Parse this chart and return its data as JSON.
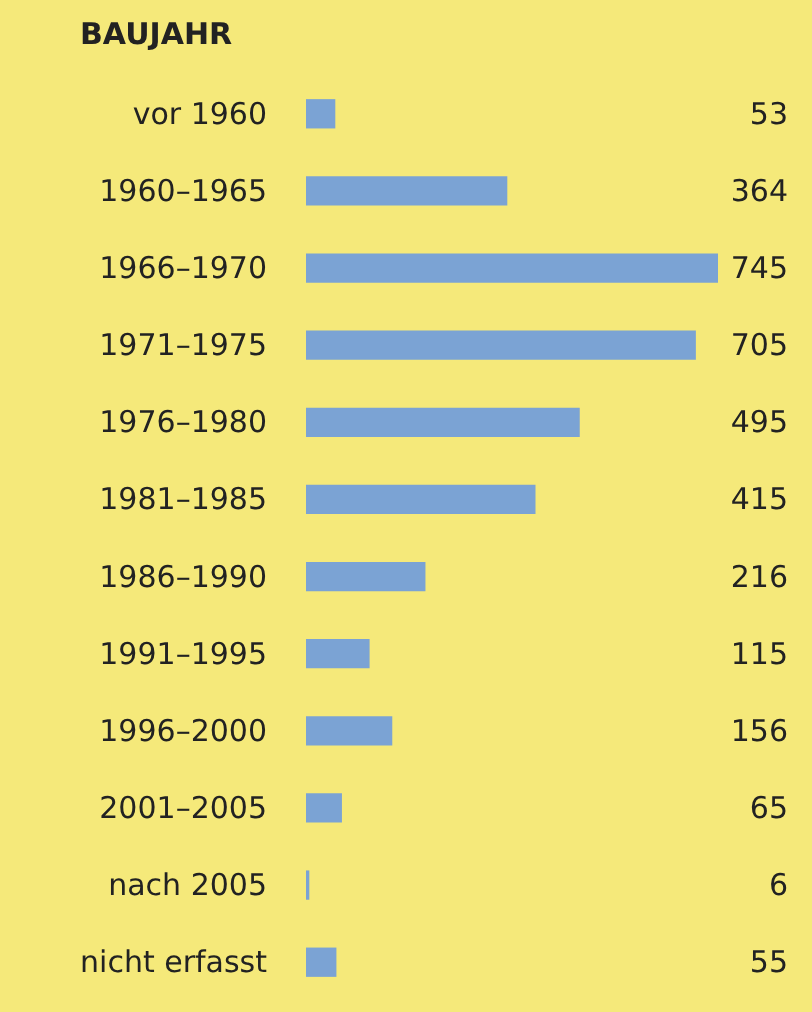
{
  "chart_data": {
    "type": "bar",
    "orientation": "horizontal",
    "title": "BAUJAHR",
    "categories": [
      "vor 1960",
      "1960–1965",
      "1966–1970",
      "1971–1975",
      "1976–1980",
      "1981–1985",
      "1986–1990",
      "1991–1995",
      "1996–2000",
      "2001–2005",
      "nach 2005",
      "nicht erfasst"
    ],
    "values": [
      53,
      364,
      745,
      705,
      495,
      415,
      216,
      115,
      156,
      65,
      6,
      55
    ],
    "color": "#7ba3d4",
    "data_labels": true,
    "tick_labels": "y"
  }
}
